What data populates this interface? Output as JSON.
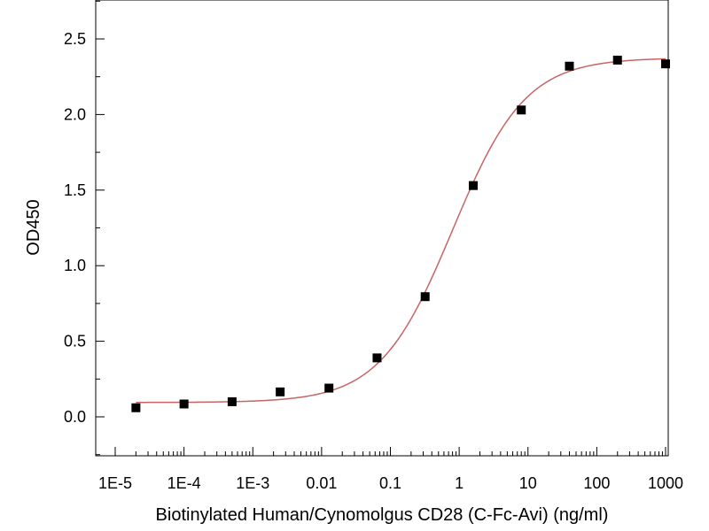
{
  "chart_data": {
    "type": "scatter",
    "title": "",
    "xlabel": "Biotinylated Human/Cynomolgus CD28 (C-Fc-Avi) (ng/ml)",
    "ylabel": "OD450",
    "xscale": "log",
    "xlim": [
      1e-05,
      1000
    ],
    "ylim": [
      -0.25,
      2.75
    ],
    "xticks": [
      {
        "value": 1e-05,
        "label": "1E-5"
      },
      {
        "value": 0.0001,
        "label": "1E-4"
      },
      {
        "value": 0.001,
        "label": "1E-3"
      },
      {
        "value": 0.01,
        "label": "0.01"
      },
      {
        "value": 0.1,
        "label": "0.1"
      },
      {
        "value": 1,
        "label": "1"
      },
      {
        "value": 10,
        "label": "10"
      },
      {
        "value": 100,
        "label": "100"
      },
      {
        "value": 1000,
        "label": "1000"
      }
    ],
    "yticks": [
      {
        "value": 0.0,
        "label": "0.0"
      },
      {
        "value": 0.5,
        "label": "0.5"
      },
      {
        "value": 1.0,
        "label": "1.0"
      },
      {
        "value": 1.5,
        "label": "1.5"
      },
      {
        "value": 2.0,
        "label": "2.0"
      },
      {
        "value": 2.5,
        "label": "2.5"
      }
    ],
    "series": [
      {
        "name": "data",
        "marker": "square",
        "color": "#000000",
        "points": [
          {
            "x": 2e-05,
            "y": 0.06
          },
          {
            "x": 0.0001,
            "y": 0.085
          },
          {
            "x": 0.0005,
            "y": 0.1
          },
          {
            "x": 0.0025,
            "y": 0.165
          },
          {
            "x": 0.0128,
            "y": 0.19
          },
          {
            "x": 0.064,
            "y": 0.39
          },
          {
            "x": 0.32,
            "y": 0.795
          },
          {
            "x": 1.6,
            "y": 1.53
          },
          {
            "x": 8,
            "y": 2.03
          },
          {
            "x": 40,
            "y": 2.32
          },
          {
            "x": 200,
            "y": 2.36
          },
          {
            "x": 1000,
            "y": 2.335
          }
        ]
      }
    ],
    "fit": {
      "type": "4PL",
      "color": "#c86464",
      "bottom": 0.095,
      "top": 2.375,
      "ec50": 0.8,
      "hill": 0.82
    }
  }
}
